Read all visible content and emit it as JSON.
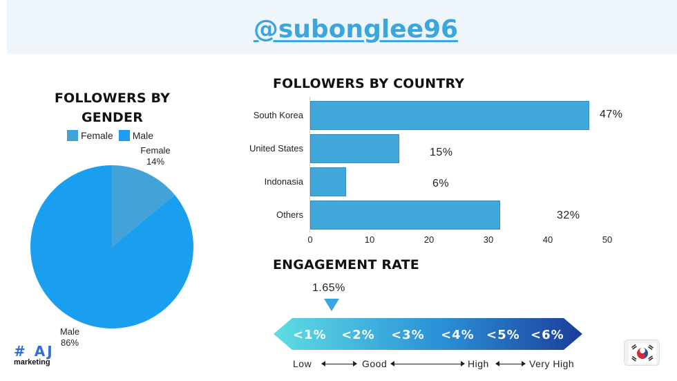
{
  "header": {
    "handle": "@subonglee96"
  },
  "gender": {
    "title": "FOLLOWERS BY GENDER",
    "legend": [
      {
        "label": "Female",
        "color": "#43a3d9"
      },
      {
        "label": "Male",
        "color": "#1a9ff0"
      }
    ],
    "labels": {
      "female_name": "Female",
      "female_pct": "14%",
      "male_name": "Male",
      "male_pct": "86%"
    }
  },
  "country": {
    "title": "FOLLOWERS BY COUNTRY",
    "pct_labels": [
      "47%",
      "15%",
      "6%",
      "32%"
    ],
    "ticks": [
      "0",
      "10",
      "20",
      "30",
      "40",
      "50"
    ]
  },
  "engagement": {
    "title": "ENGAGEMENT RATE",
    "value": "1.65%",
    "scale": [
      "<1%",
      "<2%",
      "<3%",
      "<4%",
      "<5%",
      "<6%"
    ],
    "levels": [
      "Low",
      "Good",
      "High",
      "Very High"
    ]
  },
  "logo": {
    "main": "# AJ",
    "sub": "marketing"
  },
  "flag": {
    "icon": "south-korea-flag-icon"
  },
  "chart_data": [
    {
      "type": "pie",
      "title": "FOLLOWERS BY GENDER",
      "categories": [
        "Female",
        "Male"
      ],
      "values": [
        14,
        86
      ],
      "legend": "top"
    },
    {
      "type": "bar",
      "orientation": "horizontal",
      "title": "FOLLOWERS BY COUNTRY",
      "categories": [
        "South Korea",
        "United States",
        "Indonasia",
        "Others"
      ],
      "values": [
        47,
        15,
        6,
        32
      ],
      "xlim": [
        0,
        50
      ],
      "grid": false
    }
  ]
}
